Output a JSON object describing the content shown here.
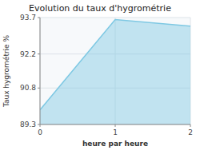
{
  "chart_data": {
    "type": "area",
    "title": "Evolution du taux d'hygrométrie",
    "xlabel": "heure par heure",
    "ylabel": "Taux hygrométrie %",
    "x": [
      0,
      1,
      2
    ],
    "values": [
      89.9,
      93.62,
      93.35
    ],
    "xlim": [
      0,
      2
    ],
    "ylim": [
      89.3,
      93.7
    ],
    "xticks": [
      0,
      1,
      2
    ],
    "yticks": [
      89.3,
      90.8,
      92.2,
      93.7
    ],
    "color": "#7ec8e3",
    "grid": true
  }
}
